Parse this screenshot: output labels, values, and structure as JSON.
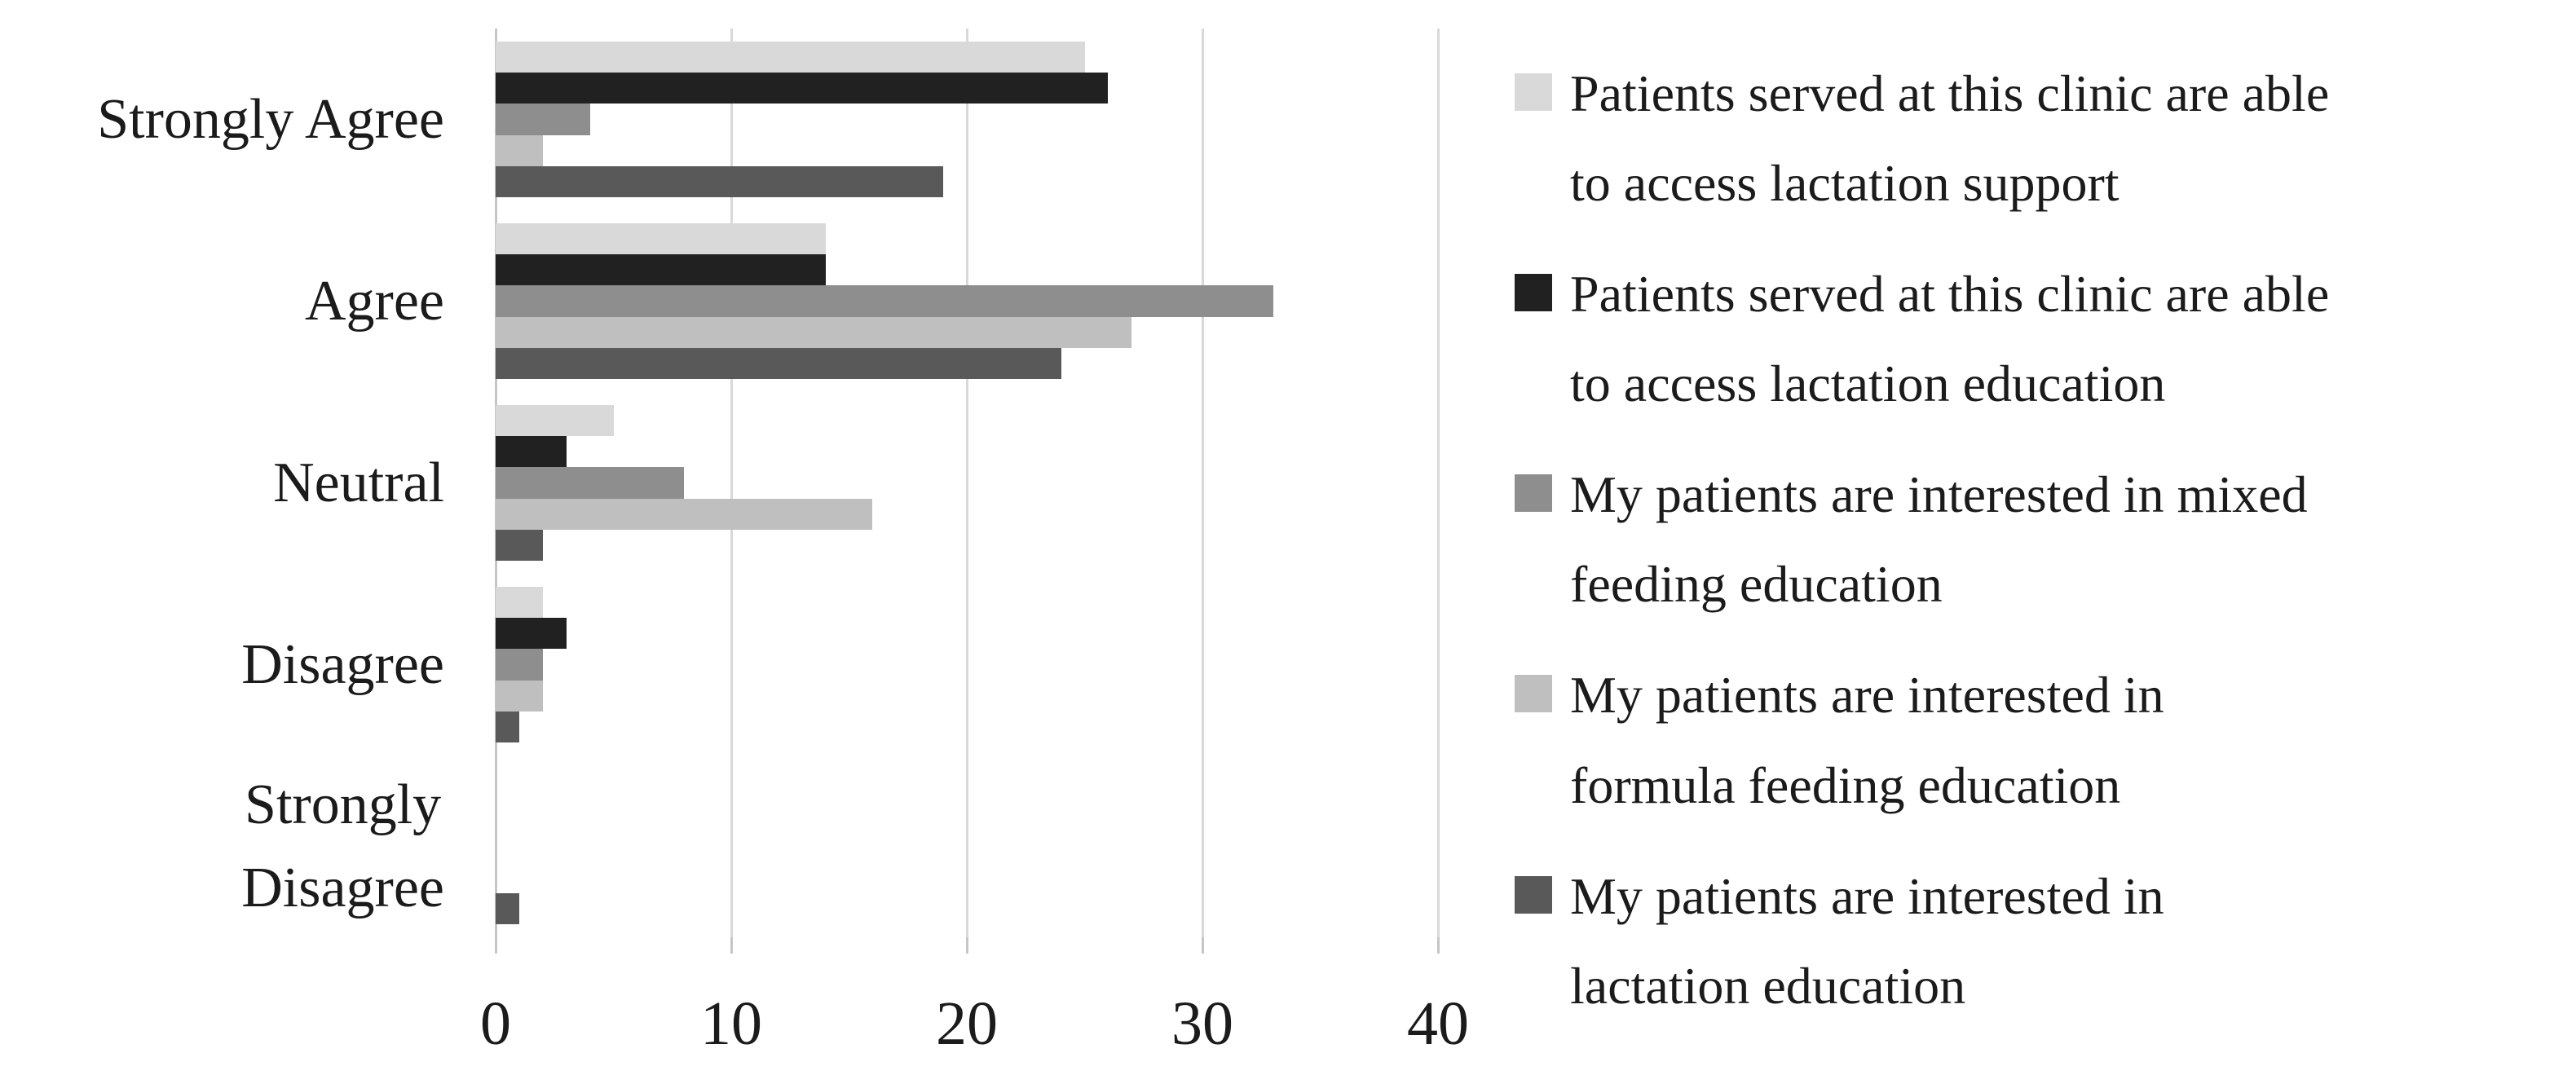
{
  "chart_data": {
    "type": "bar",
    "orientation": "horizontal",
    "title": "",
    "xlabel": "",
    "ylabel": "",
    "xlim": [
      0,
      40
    ],
    "x_ticks": [
      0,
      10,
      20,
      30,
      40
    ],
    "grid": "vertical",
    "legend_position": "right",
    "categories": [
      "Strongly Agree",
      "Agree",
      "Neutral",
      "Disagree",
      "Strongly Disagree"
    ],
    "category_display_lines": [
      [
        "Strongly Agree"
      ],
      [
        "Agree"
      ],
      [
        "Neutral"
      ],
      [
        "Disagree"
      ],
      [
        "Strongly",
        "Disagree"
      ]
    ],
    "series": [
      {
        "name": "Patients served at this clinic are able to access lactation support",
        "legend_lines": [
          "Patients served at this clinic are able",
          "to access lactation support"
        ],
        "color": "#d9d9d9",
        "values": [
          25,
          14,
          5,
          2,
          0
        ]
      },
      {
        "name": "Patients served at this clinic are able to access lactation education",
        "legend_lines": [
          "Patients served at this clinic are able",
          "to access lactation education"
        ],
        "color": "#212121",
        "values": [
          26,
          14,
          3,
          3,
          0
        ]
      },
      {
        "name": "My patients are interested in mixed feeding education",
        "legend_lines": [
          "My patients are interested in mixed",
          "feeding education"
        ],
        "color": "#8e8e8e",
        "values": [
          4,
          33,
          8,
          2,
          0
        ]
      },
      {
        "name": "My patients are interested in formula feeding education",
        "legend_lines": [
          "My patients are interested in",
          "formula feeding education"
        ],
        "color": "#bfbfbf",
        "values": [
          2,
          27,
          16,
          2,
          0
        ]
      },
      {
        "name": "My patients are interested in lactation education",
        "legend_lines": [
          "My patients are interested in",
          "lactation education"
        ],
        "color": "#595959",
        "values": [
          19,
          24,
          2,
          1,
          1
        ]
      }
    ]
  },
  "colors": {
    "background": "#ffffff",
    "gridline": "#d9d9d9",
    "axis_line": "#c6c6c6",
    "text": "#1b1b1b"
  }
}
